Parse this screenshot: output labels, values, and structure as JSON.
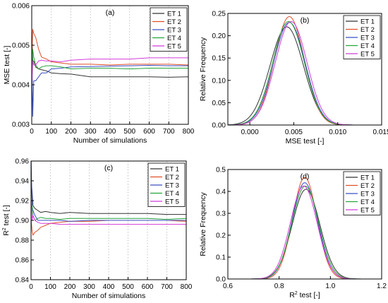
{
  "chart_data": [
    {
      "panel": "(a)",
      "type": "line",
      "xlabel": "Number of simulations",
      "ylabel": "MSE test [-]",
      "xlim": [
        0,
        800
      ],
      "ylim": [
        0.003,
        0.006
      ],
      "xticks": [
        0,
        100,
        200,
        300,
        400,
        500,
        600,
        700,
        800
      ],
      "yticks": [
        0.003,
        0.004,
        0.005,
        0.006
      ],
      "ytick_labels": [
        "0.003",
        "0.004",
        "0.005",
        "0.006"
      ],
      "grid": "vertical-dotted",
      "legend": "top-right",
      "series": [
        {
          "name": "ET 1",
          "color": "#333333",
          "x": [
            1,
            5,
            10,
            20,
            35,
            50,
            75,
            100,
            150,
            200,
            300,
            400,
            500,
            600,
            700,
            800
          ],
          "y": [
            0.0052,
            0.0046,
            0.0046,
            0.00445,
            0.0044,
            0.00438,
            0.00435,
            0.0043,
            0.00428,
            0.00427,
            0.0042,
            0.0042,
            0.0042,
            0.0042,
            0.00419,
            0.0042
          ]
        },
        {
          "name": "ET 2",
          "color": "#e0502a",
          "x": [
            1,
            5,
            10,
            20,
            35,
            50,
            75,
            100,
            150,
            200,
            300,
            400,
            500,
            600,
            700,
            800
          ],
          "y": [
            0.0048,
            0.0054,
            0.0053,
            0.0052,
            0.0049,
            0.0047,
            0.00465,
            0.00458,
            0.00455,
            0.00452,
            0.00452,
            0.0045,
            0.00452,
            0.00452,
            0.00452,
            0.0045
          ]
        },
        {
          "name": "ET 3",
          "color": "#3a4fc4",
          "x": [
            1,
            5,
            10,
            20,
            35,
            50,
            75,
            100,
            150,
            200,
            300,
            400,
            500,
            600,
            700,
            800
          ],
          "y": [
            0.0045,
            0.0032,
            0.0041,
            0.0041,
            0.0042,
            0.0043,
            0.0043,
            0.0044,
            0.00442,
            0.00445,
            0.00446,
            0.00447,
            0.00448,
            0.00449,
            0.00448,
            0.00448
          ]
        },
        {
          "name": "ET 4",
          "color": "#27a43a",
          "x": [
            1,
            5,
            10,
            20,
            35,
            50,
            75,
            100,
            150,
            200,
            300,
            400,
            500,
            600,
            700,
            800
          ],
          "y": [
            0.0044,
            0.0049,
            0.0047,
            0.0045,
            0.0044,
            0.00445,
            0.00448,
            0.00448,
            0.00445,
            0.0044,
            0.00442,
            0.00442,
            0.0044,
            0.00442,
            0.00442,
            0.00442
          ]
        },
        {
          "name": "ET 5",
          "color": "#d23cd9",
          "x": [
            1,
            5,
            10,
            20,
            35,
            50,
            75,
            100,
            150,
            200,
            300,
            400,
            500,
            600,
            700,
            800
          ],
          "y": [
            0.0041,
            0.0046,
            0.0045,
            0.0045,
            0.0046,
            0.00462,
            0.0046,
            0.0046,
            0.00458,
            0.00462,
            0.00465,
            0.00465,
            0.00465,
            0.00468,
            0.00468,
            0.00468
          ]
        }
      ]
    },
    {
      "panel": "(b)",
      "type": "line",
      "xlabel": "MSE test [-]",
      "ylabel": "Relative Frequency",
      "xlim": [
        -0.0025,
        0.015
      ],
      "ylim": [
        0,
        0.25
      ],
      "xticks": [
        0.0,
        0.005,
        0.01,
        0.015
      ],
      "xtick_labels": [
        "0.000",
        "0.005",
        "0.010",
        "0.015"
      ],
      "yticks": [
        0.0,
        0.05,
        0.1,
        0.15,
        0.2,
        0.25
      ],
      "ytick_labels": [
        "0.00",
        "0.05",
        "0.10",
        "0.15",
        "0.20",
        "0.25"
      ],
      "grid": "none",
      "legend": "top-right",
      "curve": "gaussian",
      "series": [
        {
          "name": "ET 1",
          "color": "#333333",
          "mean": 0.0042,
          "sd": 0.0019,
          "peak": 0.22
        },
        {
          "name": "ET 2",
          "color": "#e0502a",
          "mean": 0.0045,
          "sd": 0.0017,
          "peak": 0.243
        },
        {
          "name": "ET 3",
          "color": "#3a4fc4",
          "mean": 0.0045,
          "sd": 0.0018,
          "peak": 0.23
        },
        {
          "name": "ET 4",
          "color": "#27a43a",
          "mean": 0.0044,
          "sd": 0.0018,
          "peak": 0.232
        },
        {
          "name": "ET 5",
          "color": "#d23cd9",
          "mean": 0.0047,
          "sd": 0.0018,
          "peak": 0.232
        }
      ]
    },
    {
      "panel": "(c)",
      "type": "line",
      "xlabel": "Number of simulations",
      "ylabel_base": "R",
      "ylabel_sup": "2",
      "ylabel_rest": " test [-]",
      "xlim": [
        0,
        800
      ],
      "ylim": [
        0.84,
        0.96
      ],
      "xticks": [
        0,
        100,
        200,
        300,
        400,
        500,
        600,
        700,
        800
      ],
      "yticks": [
        0.84,
        0.86,
        0.88,
        0.9,
        0.92,
        0.94,
        0.96
      ],
      "ytick_labels": [
        "0.84",
        "0.86",
        "0.88",
        "0.90",
        "0.92",
        "0.94",
        "0.96"
      ],
      "grid": "vertical-dotted",
      "legend": "top-right",
      "series": [
        {
          "name": "ET 1",
          "color": "#333333",
          "x": [
            1,
            5,
            10,
            20,
            35,
            50,
            75,
            100,
            150,
            200,
            300,
            400,
            500,
            600,
            700,
            800
          ],
          "y": [
            0.94,
            0.93,
            0.915,
            0.912,
            0.91,
            0.908,
            0.909,
            0.908,
            0.907,
            0.908,
            0.907,
            0.907,
            0.907,
            0.907,
            0.906,
            0.906
          ]
        },
        {
          "name": "ET 2",
          "color": "#e0502a",
          "x": [
            1,
            5,
            10,
            20,
            35,
            50,
            75,
            100,
            150,
            200,
            300,
            400,
            500,
            600,
            700,
            800
          ],
          "y": [
            0.9,
            0.89,
            0.885,
            0.888,
            0.89,
            0.893,
            0.895,
            0.897,
            0.898,
            0.899,
            0.899,
            0.9,
            0.9,
            0.9,
            0.9,
            0.899
          ]
        },
        {
          "name": "ET 3",
          "color": "#3a4fc4",
          "x": [
            1,
            5,
            10,
            20,
            35,
            50,
            75,
            100,
            150,
            200,
            300,
            400,
            500,
            600,
            700,
            800
          ],
          "y": [
            0.96,
            0.915,
            0.91,
            0.905,
            0.9,
            0.9,
            0.9,
            0.9,
            0.9,
            0.899,
            0.9,
            0.9,
            0.9,
            0.9,
            0.9,
            0.9
          ]
        },
        {
          "name": "ET 4",
          "color": "#27a43a",
          "x": [
            1,
            5,
            10,
            20,
            35,
            50,
            75,
            100,
            150,
            200,
            300,
            400,
            500,
            600,
            700,
            800
          ],
          "y": [
            0.91,
            0.915,
            0.905,
            0.9,
            0.902,
            0.903,
            0.902,
            0.902,
            0.901,
            0.902,
            0.902,
            0.902,
            0.902,
            0.902,
            0.901,
            0.902
          ]
        },
        {
          "name": "ET 5",
          "color": "#d23cd9",
          "x": [
            1,
            5,
            10,
            20,
            35,
            50,
            75,
            100,
            150,
            200,
            300,
            400,
            500,
            600,
            700,
            800
          ],
          "y": [
            0.92,
            0.9,
            0.905,
            0.9,
            0.898,
            0.897,
            0.897,
            0.897,
            0.896,
            0.896,
            0.896,
            0.896,
            0.896,
            0.896,
            0.896,
            0.896
          ]
        }
      ]
    },
    {
      "panel": "(d)",
      "type": "line",
      "xlabel_base": "R",
      "xlabel_sup": "2",
      "xlabel_rest": " test [-]",
      "ylabel": "Relative Frequency",
      "xlim": [
        0.6,
        1.2
      ],
      "ylim": [
        0,
        0.5
      ],
      "xticks": [
        0.6,
        0.8,
        1.0,
        1.2
      ],
      "xtick_labels": [
        "0.6",
        "0.8",
        "1.0",
        "1.2"
      ],
      "yticks": [
        0.0,
        0.1,
        0.2,
        0.3,
        0.4,
        0.5
      ],
      "ytick_labels": [
        "0.0",
        "0.1",
        "0.2",
        "0.3",
        "0.4",
        "0.5"
      ],
      "grid": "none",
      "legend": "top-right",
      "curve": "gaussian",
      "series": [
        {
          "name": "ET 1",
          "color": "#333333",
          "mean": 0.905,
          "sd": 0.054,
          "peak": 0.41
        },
        {
          "name": "ET 2",
          "color": "#e0502a",
          "mean": 0.9,
          "sd": 0.047,
          "peak": 0.465
        },
        {
          "name": "ET 3",
          "color": "#3a4fc4",
          "mean": 0.9,
          "sd": 0.05,
          "peak": 0.44
        },
        {
          "name": "ET 4",
          "color": "#27a43a",
          "mean": 0.902,
          "sd": 0.052,
          "peak": 0.425
        },
        {
          "name": "ET 5",
          "color": "#d23cd9",
          "mean": 0.896,
          "sd": 0.052,
          "peak": 0.425
        }
      ]
    }
  ]
}
